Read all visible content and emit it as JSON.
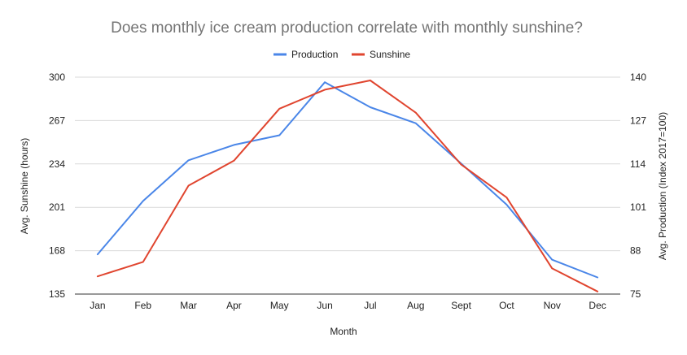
{
  "chart_data": {
    "type": "line",
    "title": "Does monthly ice cream production correlate with monthly sunshine?",
    "xlabel": "Month",
    "ylabel_left": "Avg. Sunshine (hours)",
    "ylabel_right": "Avg. Production (Index 2017=100)",
    "categories": [
      "Jan",
      "Feb",
      "Mar",
      "Apr",
      "May",
      "Jun",
      "Jul",
      "Aug",
      "Sept",
      "Oct",
      "Nov",
      "Dec"
    ],
    "left_axis": {
      "range": [
        135,
        300
      ],
      "ticks": [
        "135",
        "168",
        "201",
        "234",
        "267",
        "300"
      ]
    },
    "right_axis": {
      "range": [
        75,
        140
      ],
      "ticks": [
        "75",
        "88",
        "101",
        "114",
        "127",
        "140"
      ]
    },
    "legend_position": "top",
    "grid": true,
    "series": [
      {
        "name": "Production",
        "axis": "right",
        "color": "#4a86e8",
        "values": [
          86.9,
          102.9,
          115.1,
          119.7,
          122.6,
          138.5,
          131.0,
          126.2,
          114.1,
          101.8,
          85.3,
          80.0
        ]
      },
      {
        "name": "Sunshine",
        "axis": "left",
        "color": "#e0452f",
        "values": [
          148.5,
          159.5,
          217.5,
          236.5,
          276.0,
          290.5,
          297.5,
          273.0,
          233.5,
          208.5,
          154.5,
          137.0
        ]
      }
    ]
  }
}
